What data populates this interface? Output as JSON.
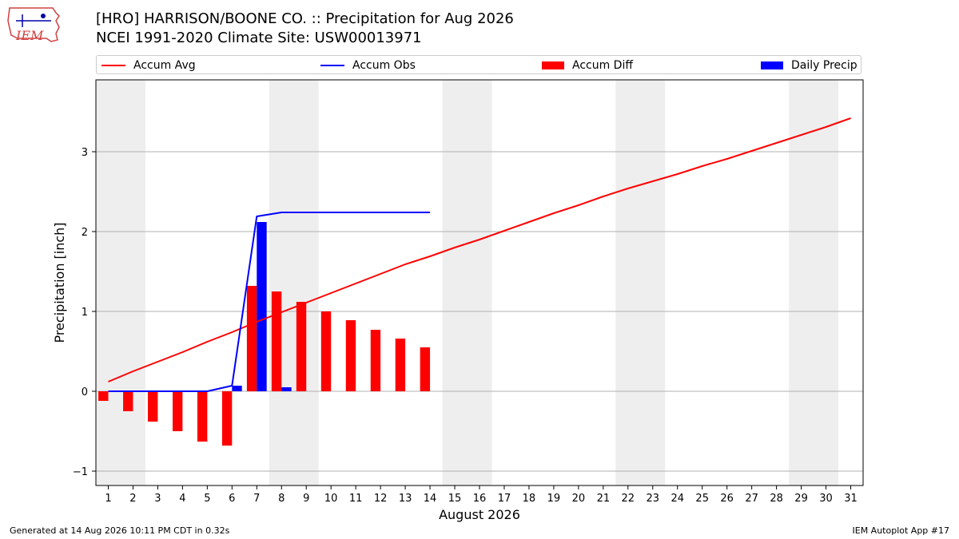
{
  "header": {
    "title_line1": "[HRO] HARRISON/BOONE CO. :: Precipitation for Aug 2026",
    "title_line2": "NCEI 1991-2020 Climate Site: USW00013971"
  },
  "logo": {
    "text": "IEM"
  },
  "footer": {
    "generated": "Generated at 14 Aug 2026 10:11 PM CDT in 0.32s",
    "app": "IEM Autoplot App #17"
  },
  "colors": {
    "avg": "#ff0000",
    "obs": "#0000ff",
    "diff": "#ff0000",
    "daily": "#0000ff",
    "weekend": "#eeeeee",
    "grid": "#b0b0b0"
  },
  "chart_data": {
    "type": "bar",
    "xlabel": "August 2026",
    "ylabel": "Precipitation [inch]",
    "xlim": [
      0.5,
      31.5
    ],
    "ylim": [
      -1.18,
      3.9
    ],
    "yticks": [
      -1,
      0,
      1,
      2,
      3
    ],
    "ytick_labels": [
      "−1",
      "0",
      "1",
      "2",
      "3"
    ],
    "days": [
      1,
      2,
      3,
      4,
      5,
      6,
      7,
      8,
      9,
      10,
      11,
      12,
      13,
      14,
      15,
      16,
      17,
      18,
      19,
      20,
      21,
      22,
      23,
      24,
      25,
      26,
      27,
      28,
      29,
      30,
      31
    ],
    "shaded_days": [
      [
        1,
        2
      ],
      [
        8,
        9
      ],
      [
        15,
        16
      ],
      [
        22,
        23
      ],
      [
        29,
        30
      ]
    ],
    "grid": "horizontal",
    "legend": {
      "placement": "top",
      "entries": [
        "Accum Avg",
        "Accum Obs",
        "Accum Diff",
        "Daily Precip"
      ]
    },
    "series": [
      {
        "name": "Accum Avg",
        "type": "line",
        "values": [
          0.12,
          0.25,
          0.37,
          0.49,
          0.62,
          0.74,
          0.87,
          0.99,
          1.11,
          1.23,
          1.35,
          1.47,
          1.59,
          1.69,
          1.8,
          1.9,
          2.01,
          2.12,
          2.23,
          2.33,
          2.44,
          2.54,
          2.63,
          2.72,
          2.82,
          2.91,
          3.01,
          3.11,
          3.21,
          3.31,
          3.42
        ]
      },
      {
        "name": "Accum Obs",
        "type": "line",
        "values": [
          0,
          0,
          0,
          0,
          0,
          0.07,
          2.19,
          2.24,
          2.24,
          2.24,
          2.24,
          2.24,
          2.24,
          2.24
        ]
      },
      {
        "name": "Accum Diff",
        "type": "bar",
        "values": [
          -0.12,
          -0.25,
          -0.38,
          -0.5,
          -0.63,
          -0.68,
          1.32,
          1.25,
          1.12,
          1.0,
          0.89,
          0.77,
          0.66,
          0.55
        ]
      },
      {
        "name": "Daily Precip",
        "type": "bar",
        "values": [
          0,
          0,
          0,
          0,
          0,
          0.07,
          2.12,
          0.05,
          0,
          0,
          0,
          0,
          0,
          0
        ]
      }
    ]
  }
}
